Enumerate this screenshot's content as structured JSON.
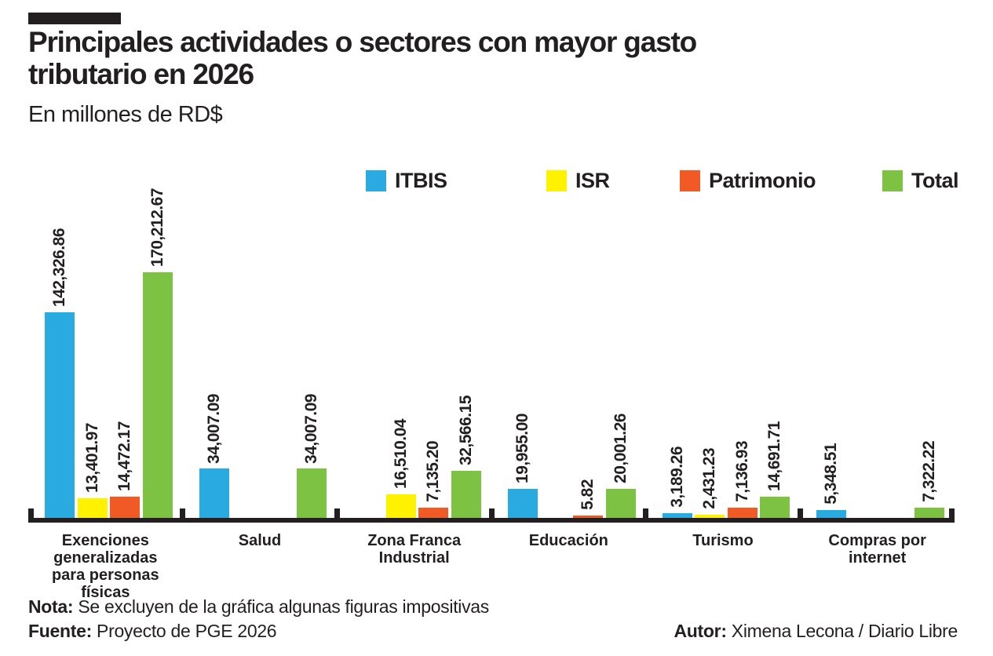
{
  "header": {
    "title_line1": "Principales actividades o sectores con mayor gasto",
    "title_line2": "tributario en 2026",
    "subtitle": "En millones de RD$"
  },
  "legend": [
    {
      "label": "ITBIS",
      "color": "#29ABE2"
    },
    {
      "label": "ISR",
      "color": "#FFF200"
    },
    {
      "label": "Patrimonio",
      "color": "#F15A24"
    },
    {
      "label": "Total",
      "color": "#7DC242"
    }
  ],
  "chart_data": {
    "type": "bar",
    "title": "Principales actividades o sectores con mayor gasto tributario en 2026",
    "unit": "millones de RD$",
    "categories": [
      "Exenciones\ngeneralizadas\npara personas físicas",
      "Salud",
      "Zona Franca\nIndustrial",
      "Educación",
      "Turismo",
      "Compras por\ninternet"
    ],
    "series": [
      {
        "name": "ITBIS",
        "color": "#29ABE2",
        "values": [
          142326.86,
          34007.09,
          null,
          19955.0,
          3189.26,
          5348.51
        ]
      },
      {
        "name": "ISR",
        "color": "#FFF200",
        "values": [
          13401.97,
          null,
          16510.04,
          null,
          2431.23,
          null
        ]
      },
      {
        "name": "Patrimonio",
        "color": "#F15A24",
        "values": [
          14472.17,
          null,
          7135.2,
          5.82,
          7136.93,
          null
        ]
      },
      {
        "name": "Total",
        "color": "#7DC242",
        "values": [
          170212.67,
          34007.09,
          32566.15,
          20001.26,
          14691.71,
          7322.22
        ]
      }
    ],
    "ylim": [
      0,
      170212.67
    ],
    "grid": false,
    "legend_position": "top",
    "value_labels": "rotated-90-above-bars"
  },
  "footer": {
    "note_label": "Nota:",
    "note_text": " Se excluyen de la gráfica algunas figuras impositivas",
    "source_label": "Fuente:",
    "source_text": " Proyecto de PGE 2026",
    "author_label": "Autor:",
    "author_text": " Ximena Lecona / Diario Libre"
  }
}
